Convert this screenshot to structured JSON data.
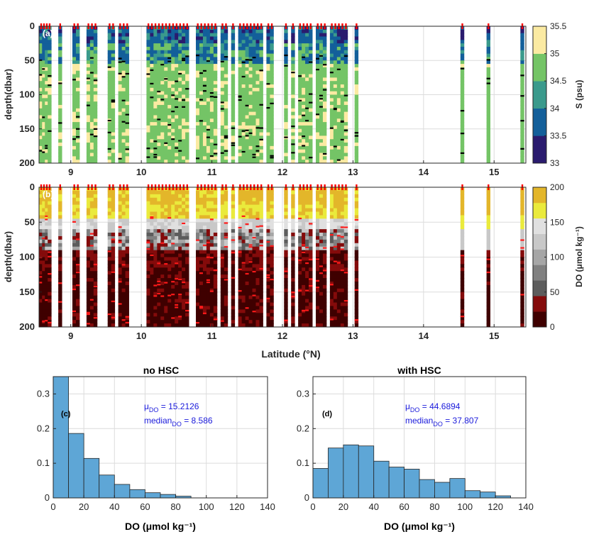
{
  "colors": {
    "salinity_bins": [
      "#2a1b6e",
      "#135f9a",
      "#3a9a8c",
      "#74c466",
      "#fbeaa2"
    ],
    "do_bins": [
      "#3f0000",
      "#840b0b",
      "#5c5c5c",
      "#808080",
      "#a6a6a6",
      "#c8c8c8",
      "#e0e0e0",
      "#eaea3c",
      "#e3b62a"
    ],
    "station_marker": "#ff0000",
    "histogram_fill": "#5ea6d6",
    "stat_text": "#1a1adb"
  },
  "chart_data": [
    {
      "id": "a",
      "panel_label": "(a)",
      "type": "heatmap",
      "xlabel": "",
      "ylabel": "depth(dbar)",
      "xlim": [
        8.55,
        15.45
      ],
      "ylim": [
        0,
        200
      ],
      "xticks": [
        9,
        10,
        11,
        12,
        13,
        14,
        15
      ],
      "yticks": [
        0,
        50,
        100,
        150,
        200
      ],
      "colorbar": {
        "label": "S (psu)",
        "ticks": [
          33,
          33.5,
          34,
          34.5,
          35,
          35.5
        ],
        "range": [
          33,
          35.5
        ]
      },
      "station_latitudes": [
        8.58,
        8.62,
        8.66,
        8.7,
        8.85,
        9.05,
        9.1,
        9.25,
        9.3,
        9.35,
        9.55,
        9.6,
        9.7,
        9.75,
        9.8,
        10.1,
        10.15,
        10.2,
        10.25,
        10.3,
        10.35,
        10.4,
        10.45,
        10.5,
        10.55,
        10.6,
        10.65,
        10.8,
        10.85,
        10.9,
        10.95,
        11.0,
        11.05,
        11.15,
        11.2,
        11.3,
        11.4,
        11.45,
        11.5,
        11.55,
        11.6,
        11.65,
        11.7,
        11.8,
        11.85,
        12.05,
        12.15,
        12.25,
        12.3,
        12.35,
        12.4,
        12.5,
        12.55,
        12.6,
        12.7,
        12.75,
        12.8,
        12.85,
        12.9,
        13.05,
        14.55,
        14.92,
        15.4
      ]
    },
    {
      "id": "b",
      "panel_label": "(b)",
      "type": "heatmap",
      "xlabel": "Latitude (°N)",
      "ylabel": "depth(dbar)",
      "xlim": [
        8.55,
        15.45
      ],
      "ylim": [
        0,
        200
      ],
      "xticks": [
        9,
        10,
        11,
        12,
        13,
        14,
        15
      ],
      "yticks": [
        0,
        50,
        100,
        150,
        200
      ],
      "colorbar": {
        "label": "DO (μmol kg⁻¹)",
        "ticks": [
          0,
          50,
          100,
          150,
          200
        ],
        "range": [
          0,
          200
        ]
      },
      "station_latitudes": [
        8.58,
        8.62,
        8.66,
        8.7,
        8.85,
        9.05,
        9.1,
        9.25,
        9.3,
        9.35,
        9.55,
        9.6,
        9.7,
        9.75,
        9.8,
        10.1,
        10.15,
        10.2,
        10.25,
        10.3,
        10.35,
        10.4,
        10.45,
        10.5,
        10.55,
        10.6,
        10.65,
        10.8,
        10.85,
        10.9,
        10.95,
        11.0,
        11.05,
        11.15,
        11.2,
        11.3,
        11.4,
        11.45,
        11.5,
        11.55,
        11.6,
        11.65,
        11.7,
        11.8,
        11.85,
        12.05,
        12.15,
        12.25,
        12.3,
        12.35,
        12.4,
        12.5,
        12.55,
        12.6,
        12.7,
        12.75,
        12.8,
        12.85,
        12.9,
        13.05,
        14.55,
        14.92,
        15.4
      ]
    },
    {
      "id": "c",
      "panel_label": "(c)",
      "type": "bar",
      "title": "no HSC",
      "xlabel": "DO (μmol kg⁻¹)",
      "ylabel": "",
      "xlim": [
        0,
        140
      ],
      "ylim": [
        0,
        0.35
      ],
      "xticks": [
        0,
        20,
        40,
        60,
        80,
        100,
        120,
        140
      ],
      "yticks": [
        0,
        0.1,
        0.2,
        0.3
      ],
      "bin_edges": [
        0,
        10,
        20,
        30,
        40,
        50,
        60,
        70,
        80,
        90
      ],
      "values": [
        0.36,
        0.186,
        0.114,
        0.066,
        0.039,
        0.024,
        0.015,
        0.01,
        0.005
      ],
      "stat_mean": "μ",
      "stat_mean_sub": "DO",
      "stat_mean_value": " = 15.2126",
      "stat_median": "median",
      "stat_median_sub": "DO",
      "stat_median_value": " = 8.586"
    },
    {
      "id": "d",
      "panel_label": "(d)",
      "type": "bar",
      "title": "with HSC",
      "xlabel": "DO (μmol kg⁻¹)",
      "ylabel": "",
      "xlim": [
        0,
        140
      ],
      "ylim": [
        0,
        0.35
      ],
      "xticks": [
        0,
        20,
        40,
        60,
        80,
        100,
        120,
        140
      ],
      "yticks": [
        0,
        0.1,
        0.2,
        0.3
      ],
      "bin_edges": [
        0,
        10,
        20,
        30,
        40,
        50,
        60,
        70,
        80,
        90,
        100,
        110,
        120,
        130
      ],
      "values": [
        0.085,
        0.144,
        0.153,
        0.15,
        0.106,
        0.089,
        0.083,
        0.053,
        0.045,
        0.056,
        0.021,
        0.017,
        0.006
      ],
      "stat_mean": "μ",
      "stat_mean_sub": "DO",
      "stat_mean_value": " = 44.6894",
      "stat_median": "median",
      "stat_median_sub": "DO",
      "stat_median_value": " = 37.807"
    }
  ]
}
